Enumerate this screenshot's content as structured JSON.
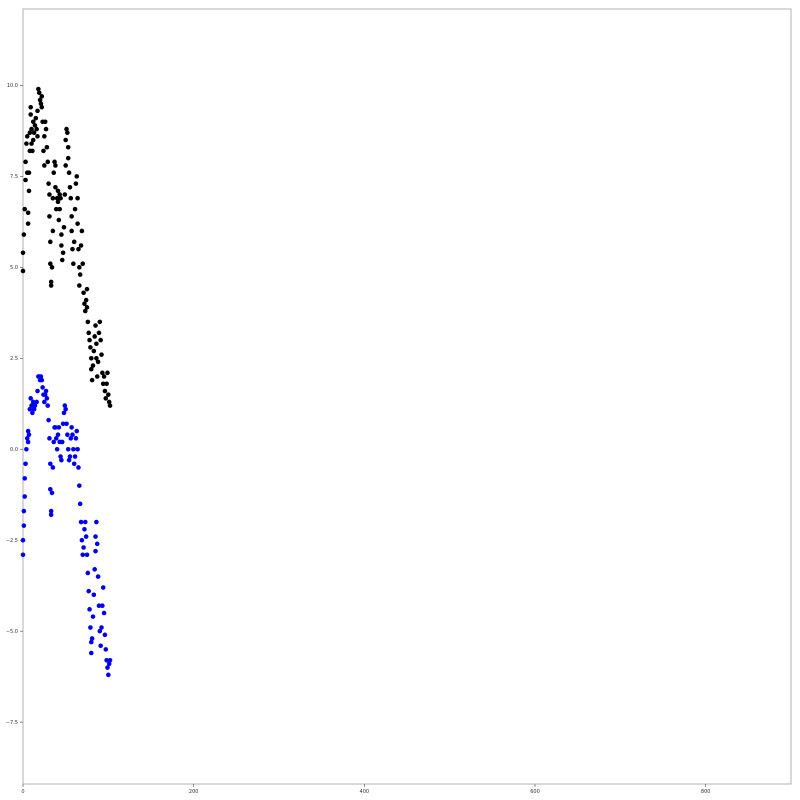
{
  "chart_data": {
    "type": "scatter",
    "title": "",
    "xlabel": "",
    "ylabel": "",
    "xlim": [
      0,
      900
    ],
    "ylim": [
      -9.2,
      12.1
    ],
    "grid": false,
    "legend": "none",
    "x_ticks": [
      0,
      200,
      400,
      600,
      800
    ],
    "y_ticks": [
      10.0,
      7.5,
      5.0,
      2.5,
      0.0,
      -2.5,
      -5.0,
      -7.5
    ],
    "x_tick_labels": [
      "0",
      "200",
      "400",
      "600",
      "800"
    ],
    "y_tick_labels": [
      "10.0",
      "7.5",
      "5.0",
      "2.5",
      "0.0",
      "−2.5",
      "−5.0",
      "−7.5"
    ],
    "series": [
      {
        "color": "#000000",
        "points": [
          [
            0,
            4.9
          ],
          [
            0,
            5.4
          ],
          [
            1,
            5.9
          ],
          [
            2,
            6.6
          ],
          [
            3,
            7.4
          ],
          [
            3,
            7.9
          ],
          [
            4,
            8.4
          ],
          [
            5,
            8.6
          ],
          [
            5,
            7.6
          ],
          [
            6,
            6.2
          ],
          [
            6,
            6.5
          ],
          [
            7,
            7.1
          ],
          [
            7,
            7.6
          ],
          [
            8,
            8.2
          ],
          [
            8,
            8.7
          ],
          [
            9,
            9.2
          ],
          [
            9,
            9.4
          ],
          [
            10,
            8.8
          ],
          [
            10,
            8.4
          ],
          [
            11,
            8.2
          ],
          [
            12,
            8.5
          ],
          [
            12,
            9.0
          ],
          [
            13,
            8.7
          ],
          [
            14,
            8.9
          ],
          [
            15,
            9.1
          ],
          [
            16,
            8.8
          ],
          [
            17,
            8.6
          ],
          [
            17,
            9.3
          ],
          [
            18,
            9.9
          ],
          [
            19,
            9.8
          ],
          [
            20,
            9.6
          ],
          [
            21,
            9.5
          ],
          [
            22,
            9.7
          ],
          [
            22,
            9.4
          ],
          [
            23,
            9.0
          ],
          [
            24,
            8.2
          ],
          [
            25,
            7.8
          ],
          [
            25,
            8.6
          ],
          [
            26,
            9.0
          ],
          [
            27,
            8.8
          ],
          [
            28,
            8.3
          ],
          [
            29,
            7.9
          ],
          [
            30,
            7.3
          ],
          [
            31,
            7.0
          ],
          [
            31,
            6.4
          ],
          [
            32,
            5.7
          ],
          [
            32,
            5.1
          ],
          [
            33,
            4.6
          ],
          [
            33,
            4.5
          ],
          [
            34,
            5.0
          ],
          [
            35,
            6.0
          ],
          [
            35,
            6.9
          ],
          [
            36,
            7.6
          ],
          [
            37,
            7.9
          ],
          [
            38,
            7.8
          ],
          [
            38,
            7.2
          ],
          [
            39,
            6.6
          ],
          [
            40,
            6.9
          ],
          [
            41,
            7.1
          ],
          [
            41,
            6.8
          ],
          [
            42,
            6.3
          ],
          [
            43,
            6.6
          ],
          [
            43,
            7.0
          ],
          [
            44,
            6.9
          ],
          [
            45,
            5.9
          ],
          [
            45,
            5.6
          ],
          [
            46,
            5.2
          ],
          [
            47,
            5.4
          ],
          [
            48,
            6.1
          ],
          [
            49,
            7.0
          ],
          [
            50,
            7.8
          ],
          [
            50,
            8.5
          ],
          [
            51,
            8.8
          ],
          [
            52,
            8.7
          ],
          [
            53,
            8.3
          ],
          [
            53,
            8.0
          ],
          [
            54,
            7.6
          ],
          [
            55,
            7.2
          ],
          [
            56,
            6.9
          ],
          [
            57,
            6.4
          ],
          [
            57,
            6.0
          ],
          [
            58,
            5.5
          ],
          [
            59,
            5.1
          ],
          [
            60,
            5.7
          ],
          [
            61,
            6.6
          ],
          [
            62,
            7.3
          ],
          [
            63,
            7.5
          ],
          [
            64,
            6.9
          ],
          [
            64,
            6.2
          ],
          [
            65,
            5.5
          ],
          [
            66,
            5.0
          ],
          [
            66,
            4.5
          ],
          [
            67,
            4.8
          ],
          [
            68,
            5.6
          ],
          [
            69,
            6.0
          ],
          [
            70,
            5.1
          ],
          [
            71,
            4.3
          ],
          [
            72,
            4.0
          ],
          [
            73,
            3.8
          ],
          [
            74,
            4.1
          ],
          [
            75,
            4.4
          ],
          [
            75,
            3.9
          ],
          [
            76,
            3.5
          ],
          [
            77,
            3.2
          ],
          [
            78,
            3.0
          ],
          [
            79,
            2.8
          ],
          [
            80,
            2.5
          ],
          [
            80,
            2.2
          ],
          [
            81,
            1.9
          ],
          [
            82,
            2.3
          ],
          [
            83,
            2.7
          ],
          [
            84,
            3.1
          ],
          [
            85,
            3.4
          ],
          [
            86,
            2.9
          ],
          [
            86,
            2.5
          ],
          [
            87,
            2.0
          ],
          [
            88,
            2.4
          ],
          [
            89,
            3.2
          ],
          [
            90,
            3.5
          ],
          [
            91,
            3.0
          ],
          [
            92,
            2.6
          ],
          [
            93,
            2.1
          ],
          [
            94,
            1.8
          ],
          [
            95,
            2.0
          ],
          [
            96,
            1.6
          ],
          [
            97,
            1.4
          ],
          [
            98,
            1.8
          ],
          [
            99,
            2.1
          ],
          [
            100,
            1.5
          ],
          [
            101,
            1.3
          ],
          [
            102,
            1.2
          ]
        ]
      },
      {
        "color": "#0000ee",
        "points": [
          [
            0,
            -2.9
          ],
          [
            0,
            -2.5
          ],
          [
            1,
            -2.1
          ],
          [
            1,
            -1.7
          ],
          [
            2,
            -1.3
          ],
          [
            2,
            -0.8
          ],
          [
            3,
            -0.4
          ],
          [
            4,
            0.0
          ],
          [
            5,
            0.3
          ],
          [
            6,
            0.5
          ],
          [
            6,
            0.2
          ],
          [
            7,
            0.4
          ],
          [
            8,
            1.1
          ],
          [
            9,
            1.4
          ],
          [
            10,
            1.2
          ],
          [
            11,
            1.0
          ],
          [
            12,
            1.3
          ],
          [
            13,
            1.1
          ],
          [
            14,
            1.2
          ],
          [
            16,
            1.3
          ],
          [
            17,
            1.6
          ],
          [
            18,
            2.0
          ],
          [
            19,
            2.0
          ],
          [
            20,
            1.9
          ],
          [
            21,
            2.0
          ],
          [
            22,
            1.9
          ],
          [
            23,
            1.7
          ],
          [
            24,
            1.5
          ],
          [
            25,
            1.3
          ],
          [
            26,
            1.5
          ],
          [
            27,
            1.6
          ],
          [
            28,
            1.4
          ],
          [
            29,
            1.2
          ],
          [
            30,
            0.8
          ],
          [
            31,
            0.3
          ],
          [
            32,
            -0.4
          ],
          [
            32,
            -1.1
          ],
          [
            33,
            -1.7
          ],
          [
            33,
            -1.8
          ],
          [
            34,
            -1.2
          ],
          [
            35,
            -0.5
          ],
          [
            36,
            0.2
          ],
          [
            37,
            0.6
          ],
          [
            38,
            0.6
          ],
          [
            39,
            0.3
          ],
          [
            40,
            0.0
          ],
          [
            41,
            0.4
          ],
          [
            42,
            0.6
          ],
          [
            43,
            0.2
          ],
          [
            44,
            -0.2
          ],
          [
            45,
            -0.3
          ],
          [
            46,
            0.2
          ],
          [
            47,
            0.7
          ],
          [
            48,
            1.0
          ],
          [
            49,
            1.2
          ],
          [
            50,
            1.1
          ],
          [
            51,
            0.7
          ],
          [
            52,
            0.4
          ],
          [
            53,
            0.0
          ],
          [
            54,
            -0.3
          ],
          [
            55,
            -0.2
          ],
          [
            56,
            0.3
          ],
          [
            57,
            0.6
          ],
          [
            58,
            0.4
          ],
          [
            59,
            0.0
          ],
          [
            60,
            -0.4
          ],
          [
            61,
            -0.2
          ],
          [
            62,
            0.3
          ],
          [
            63,
            0.5
          ],
          [
            64,
            0.0
          ],
          [
            65,
            -0.5
          ],
          [
            66,
            -1.0
          ],
          [
            67,
            -1.5
          ],
          [
            68,
            -2.0
          ],
          [
            69,
            -2.5
          ],
          [
            70,
            -2.9
          ],
          [
            71,
            -2.7
          ],
          [
            72,
            -2.2
          ],
          [
            73,
            -2.0
          ],
          [
            74,
            -2.4
          ],
          [
            75,
            -2.9
          ],
          [
            76,
            -3.4
          ],
          [
            77,
            -3.9
          ],
          [
            78,
            -4.4
          ],
          [
            79,
            -4.9
          ],
          [
            80,
            -5.3
          ],
          [
            80,
            -5.6
          ],
          [
            81,
            -5.2
          ],
          [
            82,
            -4.6
          ],
          [
            83,
            -4.0
          ],
          [
            84,
            -3.3
          ],
          [
            85,
            -2.8
          ],
          [
            85,
            -2.4
          ],
          [
            86,
            -2.0
          ],
          [
            87,
            -2.6
          ],
          [
            88,
            -3.5
          ],
          [
            89,
            -4.3
          ],
          [
            90,
            -5.0
          ],
          [
            91,
            -5.4
          ],
          [
            92,
            -4.9
          ],
          [
            93,
            -4.3
          ],
          [
            94,
            -3.8
          ],
          [
            95,
            -4.5
          ],
          [
            96,
            -5.1
          ],
          [
            97,
            -5.5
          ],
          [
            98,
            -5.8
          ],
          [
            99,
            -6.0
          ],
          [
            100,
            -6.2
          ],
          [
            101,
            -5.9
          ],
          [
            102,
            -5.8
          ]
        ]
      }
    ]
  }
}
